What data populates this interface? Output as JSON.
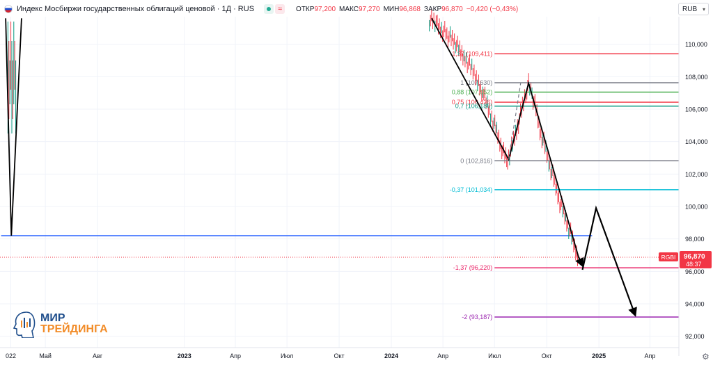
{
  "header": {
    "title": "Индекс Мосбиржи государственных облигаций ценовой · 1Д · RUS",
    "ohlc": [
      {
        "k": "ОТКР",
        "v": "97,200"
      },
      {
        "k": "МАКС",
        "v": "97,270"
      },
      {
        "k": "МИН",
        "v": "96,868"
      },
      {
        "k": "ЗАКР",
        "v": "96,870"
      },
      {
        "k": "",
        "v": "−0,420 (−0,43%)"
      }
    ],
    "pill_icon": "equals-icon",
    "pill_text": "≈"
  },
  "currency": {
    "label": "RUB",
    "chevron": "chevron-down-icon"
  },
  "price_tag": {
    "symbol": "RGBI",
    "price": "96,870",
    "countdown": "48:37",
    "color": "#f23645"
  },
  "logo": {
    "line1": "МИР",
    "line2": "ТРЕЙДИНГА",
    "colors": {
      "line1": "#1f4e8c",
      "line2": "#f28c28"
    }
  },
  "colors": {
    "candle_down": "#f23645",
    "candle_up": "#089981",
    "horizontal_line": "#2962ff",
    "arrows": "#000000",
    "fib": {
      "1.37": "#f23645",
      "1": "#787b86",
      "0.88": "#4caf50",
      "0.75": "#f23645",
      "0.7": "#089981",
      "0": "#787b86",
      "-0.37": "#00bcd4",
      "-1.37": "#e91e63",
      "-2": "#9c27b0"
    }
  },
  "chart_data": {
    "type": "line",
    "title": "Индекс Мосбиржи государственных облигаций ценовой · 1Д · RUS",
    "y_axis": {
      "ticks": [
        92,
        94,
        96,
        98,
        100,
        102,
        104,
        106,
        108,
        110
      ],
      "tick_labels": [
        "92,000",
        "94,000",
        "96,000",
        "98,000",
        "100,000",
        "102,000",
        "104,000",
        "106,000",
        "108,000",
        "110,000"
      ],
      "range": [
        91.3,
        111.7
      ],
      "side": "right"
    },
    "x_axis": {
      "ticks": [
        "2022-03",
        "2022-05",
        "2022-08",
        "2023-01",
        "2023-04",
        "2023-07",
        "2023-10",
        "2024-01",
        "2024-04",
        "2024-07",
        "2024-10",
        "2025-01",
        "2025-04"
      ],
      "tick_labels": [
        "022",
        "Май",
        "Авг",
        "2023",
        "Апр",
        "Июл",
        "Окт",
        "2024",
        "Апр",
        "Июл",
        "Окт",
        "2025",
        "Апр"
      ],
      "bold": [
        "2023",
        "2024",
        "2025"
      ],
      "range": [
        "2022-02-10",
        "2025-05-22"
      ]
    },
    "fib_levels": [
      {
        "label": "1,37 (109,411)",
        "ratio": 1.37,
        "value": 109.411
      },
      {
        "label": "1 (107,630)",
        "ratio": 1,
        "value": 107.63
      },
      {
        "label": "0,88 (107,052)",
        "ratio": 0.88,
        "value": 107.052
      },
      {
        "label": "0,75 (106,426)",
        "ratio": 0.75,
        "value": 106.426
      },
      {
        "label": "0,7 (106,186)",
        "ratio": 0.7,
        "value": 106.186
      },
      {
        "label": "0 (102,816)",
        "ratio": 0,
        "value": 102.816
      },
      {
        "label": "-0,37 (101,034)",
        "ratio": -0.37,
        "value": 101.034
      },
      {
        "label": "-1,37 (96,220)",
        "ratio": -1.37,
        "value": 96.22
      },
      {
        "label": "-2 (93,187)",
        "ratio": -2,
        "value": 93.187
      }
    ],
    "fib_range": {
      "start": "2024-07-01",
      "end": "2025-05-22"
    },
    "horizontal_line": {
      "value": 98.2,
      "start": "2022-02-12",
      "end": "2024-12-20"
    },
    "current_price_line": 96.87,
    "price_series": [
      {
        "x": "2024-03-08",
        "y": 111.5
      },
      {
        "x": "2024-03-22",
        "y": 111.2
      },
      {
        "x": "2024-04-08",
        "y": 110.6
      },
      {
        "x": "2024-04-25",
        "y": 110.0
      },
      {
        "x": "2024-05-10",
        "y": 109.2
      },
      {
        "x": "2024-05-22",
        "y": 108.4
      },
      {
        "x": "2024-06-03",
        "y": 107.6
      },
      {
        "x": "2024-06-12",
        "y": 106.9
      },
      {
        "x": "2024-06-20",
        "y": 106.0
      },
      {
        "x": "2024-06-28",
        "y": 105.3
      },
      {
        "x": "2024-07-05",
        "y": 104.6
      },
      {
        "x": "2024-07-12",
        "y": 103.8
      },
      {
        "x": "2024-07-19",
        "y": 103.1
      },
      {
        "x": "2024-07-24",
        "y": 102.9
      },
      {
        "x": "2024-07-31",
        "y": 103.6
      },
      {
        "x": "2024-08-07",
        "y": 104.5
      },
      {
        "x": "2024-08-14",
        "y": 105.4
      },
      {
        "x": "2024-08-21",
        "y": 106.4
      },
      {
        "x": "2024-08-27",
        "y": 107.3
      },
      {
        "x": "2024-08-30",
        "y": 107.6
      },
      {
        "x": "2024-09-05",
        "y": 106.9
      },
      {
        "x": "2024-09-12",
        "y": 106.0
      },
      {
        "x": "2024-09-19",
        "y": 104.7
      },
      {
        "x": "2024-09-26",
        "y": 103.9
      },
      {
        "x": "2024-10-03",
        "y": 103.0
      },
      {
        "x": "2024-10-10",
        "y": 102.1
      },
      {
        "x": "2024-10-17",
        "y": 101.2
      },
      {
        "x": "2024-10-24",
        "y": 100.3
      },
      {
        "x": "2024-10-31",
        "y": 99.6
      },
      {
        "x": "2024-11-07",
        "y": 98.9
      },
      {
        "x": "2024-11-14",
        "y": 98.1
      },
      {
        "x": "2024-11-21",
        "y": 97.3
      },
      {
        "x": "2024-11-26",
        "y": 96.9
      }
    ],
    "projection_arrows": [
      [
        {
          "x": "2024-11-26",
          "y": 96.9
        },
        {
          "x": "2024-12-03",
          "y": 96.35
        }
      ],
      [
        {
          "x": "2024-12-03",
          "y": 96.1
        },
        {
          "x": "2024-12-27",
          "y": 99.9
        },
        {
          "x": "2025-03-06",
          "y": 93.3
        }
      ]
    ],
    "wave_lines": [
      [
        {
          "x": "2024-03-12",
          "y": 111.6
        },
        {
          "x": "2024-07-26",
          "y": 102.9
        },
        {
          "x": "2024-08-30",
          "y": 107.6
        },
        {
          "x": "2024-11-26",
          "y": 96.9
        }
      ],
      [
        {
          "x": "2022-02-20",
          "y": 111.6
        },
        {
          "x": "2022-03-02",
          "y": 98.2
        },
        {
          "x": "2022-03-20",
          "y": 111.6
        }
      ]
    ],
    "dashed_lines": [
      [
        {
          "x": "2024-07-26",
          "y": 102.9
        },
        {
          "x": "2024-08-16",
          "y": 107.6
        }
      ]
    ]
  }
}
